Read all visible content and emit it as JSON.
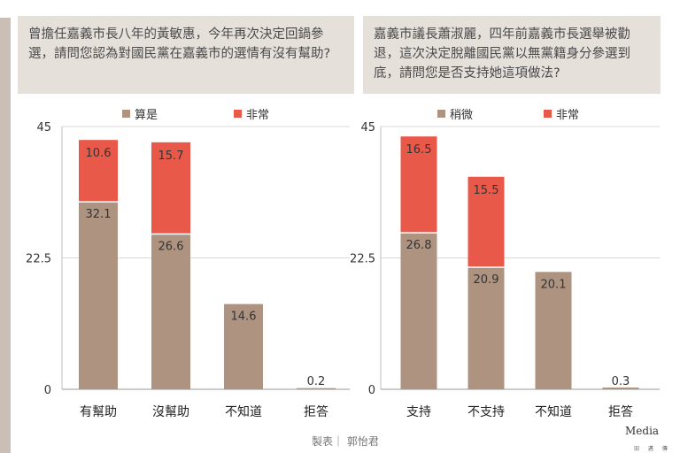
{
  "questions": [
    "曾擔任嘉義市長八年的黃敏惠，今年再次決定回鍋參選，請問您認為對國民黨在嘉義市的選情有沒有幫助?",
    "嘉義市議長蕭淑麗，四年前嘉義市長選舉被勸退，這次決定脫離國民黨以無黨籍身分參選到底，請問您是否支持她這項做法?"
  ],
  "colors": {
    "base": "#ae9480",
    "top": "#e9594a",
    "grid": "#d9d9d9",
    "axis": "#666666"
  },
  "chart_data": [
    {
      "type": "bar",
      "stacked": true,
      "categories": [
        "有幫助",
        "沒幫助",
        "不知道",
        "拒答"
      ],
      "series": [
        {
          "name": "算是",
          "values": [
            32.1,
            26.6,
            14.6,
            0.2
          ]
        },
        {
          "name": "非常",
          "values": [
            10.6,
            15.7,
            null,
            null
          ]
        }
      ],
      "ylim": [
        0,
        45
      ],
      "yticks": [
        "0",
        "22.5",
        "45"
      ],
      "grid": true,
      "legend": "top"
    },
    {
      "type": "bar",
      "stacked": true,
      "categories": [
        "支持",
        "不支持",
        "不知道",
        "拒答"
      ],
      "series": [
        {
          "name": "稍微",
          "values": [
            26.8,
            20.9,
            20.1,
            0.3
          ]
        },
        {
          "name": "非常",
          "values": [
            16.5,
            15.5,
            null,
            null
          ]
        }
      ],
      "ylim": [
        0,
        45
      ],
      "yticks": [
        "0",
        "22.5",
        "45"
      ],
      "grid": true,
      "legend": "top"
    }
  ],
  "footer": {
    "credit": "製表｜ 郭怡君",
    "logo": "Media",
    "logo_sub": "旧 邁 傳"
  }
}
